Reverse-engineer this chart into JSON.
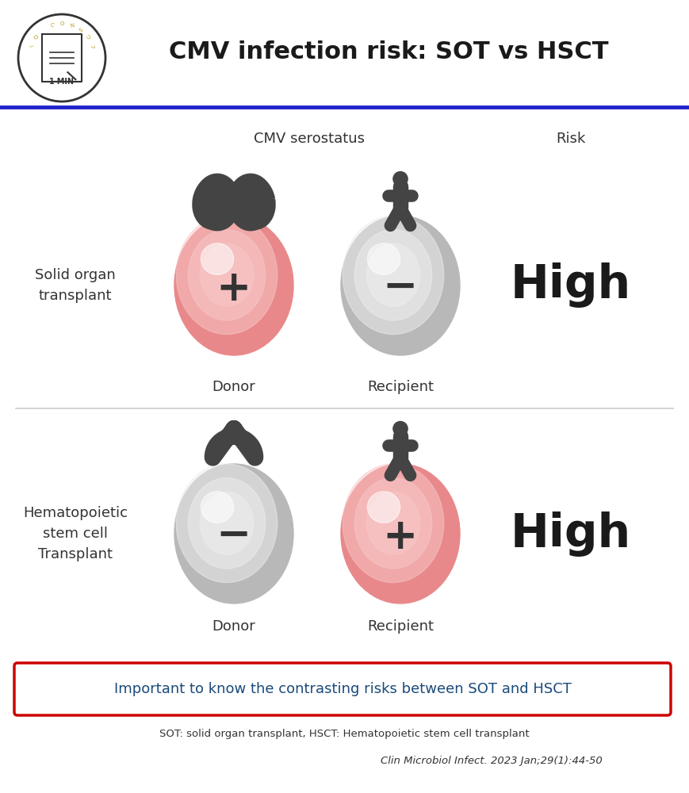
{
  "title": "CMV infection risk: SOT vs HSCT",
  "bg_color": "#ffffff",
  "title_color": "#1a1a1a",
  "blue_line_color": "#2222cc",
  "header_serostatus": "CMV serostatus",
  "header_risk": "Risk",
  "sot_label": "Solid organ\ntransplant",
  "hsct_label": "Hematopoietic\nstem cell\nTransplant",
  "donor_label": "Donor",
  "recipient_label": "Recipient",
  "sot_risk": "High",
  "hsct_risk": "High",
  "sot_donor_color_outer": "#e8888a",
  "sot_donor_color_inner": "#f8c8c8",
  "sot_recipient_color_outer": "#b8b8b8",
  "sot_recipient_color_inner": "#eeeeee",
  "hsct_donor_color_outer": "#b8b8b8",
  "hsct_donor_color_inner": "#eeeeee",
  "hsct_recipient_color_outer": "#e8888a",
  "hsct_recipient_color_inner": "#f8c8c8",
  "footer_box_text": "Important to know the contrasting risks between SOT and HSCT",
  "footer_box_color": "#cc0000",
  "footer_text_color": "#1a4a7a",
  "abbrev_text": "SOT: solid organ transplant, HSCT: Hematopoietic stem cell transplant",
  "citation_text": "Clin Microbiol Infect. 2023 Jan;29(1):44-50",
  "divider_color": "#cccccc",
  "sign_color": "#333333",
  "high_color": "#1a1a1a",
  "label_color": "#333333",
  "icon_color": "#444444"
}
